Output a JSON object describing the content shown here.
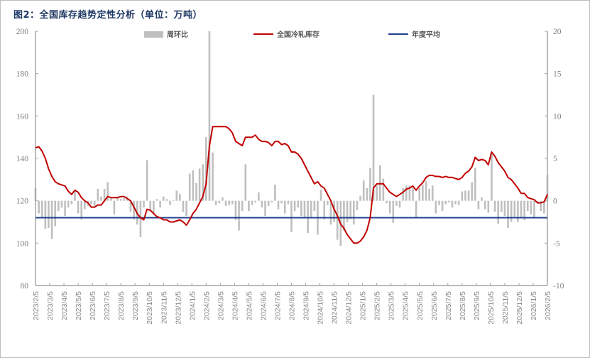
{
  "title": "图2：全国库存趋势定性分析（单位：万吨）",
  "chart_data": {
    "type": "bar+line",
    "title": "图2：全国库存趋势定性分析（单位：万吨）",
    "x_axis": {
      "type": "date",
      "frequency": "weekly",
      "range": [
        "2023/2/5",
        "2026/2/5"
      ],
      "tick_labels": [
        "2023/2/5",
        "2023/3/5",
        "2023/4/5",
        "2023/5/5",
        "2023/6/5",
        "2023/7/5",
        "2023/8/5",
        "2023/9/5",
        "2023/10/5",
        "2023/11/5",
        "2023/12/5",
        "2024/1/5",
        "2024/2/5",
        "2024/3/5",
        "2024/4/5",
        "2024/5/5",
        "2024/6/5",
        "2024/7/5",
        "2024/8/5",
        "2024/9/5",
        "2024/10/5",
        "2024/11/5",
        "2024/12/5",
        "2025/1/5",
        "2025/2/5",
        "2025/3/5",
        "2025/4/5",
        "2025/5/5",
        "2025/6/5",
        "2025/7/5",
        "2025/8/5",
        "2025/9/5",
        "2025/10/5",
        "2025/11/5",
        "2025/12/5",
        "2026/1/5",
        "2026/2/5"
      ]
    },
    "y_left": {
      "ylim": [
        80,
        200
      ],
      "ticks": [
        "200",
        "180",
        "160",
        "140",
        "120",
        "100",
        "80"
      ]
    },
    "y_right": {
      "ylim": [
        -10,
        20
      ],
      "ticks": [
        "20",
        "15",
        "10",
        "5",
        "0",
        "-5",
        "-10"
      ]
    },
    "legend_placement": "top",
    "grid": false,
    "colors": {
      "bars": "#bfbfbf",
      "line": "#c00000",
      "average": "#1f3f8f"
    },
    "series": [
      {
        "name": "周环比",
        "type": "bar",
        "axis": "right",
        "values": [
          1.5,
          -1.5,
          -2.0,
          -3.3,
          -3.2,
          -4.5,
          -3.0,
          -1.2,
          -0.8,
          -1.8,
          -0.8,
          -0.4,
          1.2,
          -1.5,
          -2.2,
          -1.0,
          -0.6,
          -0.4,
          -0.6,
          1.4,
          0.5,
          1.4,
          2.2,
          0.3,
          -1.6,
          0.5,
          0.2,
          0.3,
          0.5,
          -1.3,
          -2.2,
          -2.8,
          -4.3,
          -0.8,
          4.8,
          -1.2,
          -1.5,
          0.2,
          -0.8,
          0.5,
          0.2,
          -0.5,
          0.1,
          1.2,
          0.8,
          -1.3,
          -1.8,
          3.2,
          3.6,
          2.1,
          3.8,
          4.3,
          7.5,
          20,
          5.7,
          -0.5,
          -0.3,
          0.4,
          -0.6,
          -0.5,
          -0.4,
          -2.3,
          -3.5,
          -1.2,
          4.3,
          -1.2,
          -0.5,
          -0.2,
          1.0,
          -0.8,
          -1.8,
          -0.6,
          -0.2,
          1.9,
          -1.0,
          -0.3,
          -1.5,
          -0.4,
          -3.7,
          -1.2,
          -0.8,
          -1.8,
          -2.0,
          -3.8,
          -1.9,
          -1.2,
          -4.0,
          1.3,
          -2.2,
          -0.5,
          -2.8,
          -2.5,
          -4.6,
          -5.3,
          -3.5,
          -2.5,
          -2.2,
          -2.8,
          -1.1,
          0.6,
          2.4,
          1.5,
          3.9,
          12.5,
          1.8,
          4.2,
          2.6,
          -0.3,
          -1.5,
          -2.6,
          -0.6,
          -0.8,
          1.5,
          1.8,
          1.8,
          1.5,
          -2.0,
          1.5,
          1.9,
          2.3,
          1.4,
          1.8,
          -1.5,
          -0.5,
          -1.2,
          -0.4,
          -0.2,
          -0.8,
          -0.4,
          -0.5,
          1.1,
          1.2,
          1.2,
          2.2,
          3.9,
          -1.0,
          0.4,
          -1.0,
          -1.4,
          5.5,
          -1.3,
          -2.7,
          -1.3,
          -1.8,
          -3.2,
          -2.5,
          -1.9,
          -2.5,
          -2.0,
          -2.3,
          -1.2,
          -1.6,
          -2.0,
          -0.3,
          -1.2,
          -1.5,
          3.0
        ]
      },
      {
        "name": "全国冷轧库存",
        "type": "line",
        "axis": "left",
        "values": [
          145,
          145.5,
          143.5,
          140,
          135,
          131.5,
          129,
          128,
          127.5,
          127,
          124.5,
          123,
          125,
          124,
          121.5,
          120,
          119,
          117,
          117,
          118,
          118,
          120,
          122,
          121.5,
          121.5,
          121.5,
          122,
          122,
          121,
          120,
          117,
          114,
          112,
          111,
          116,
          115.5,
          114,
          112.5,
          112,
          111,
          111,
          110,
          110,
          110.5,
          111,
          110,
          108.5,
          111,
          114,
          116,
          119,
          122,
          128,
          146,
          155,
          155,
          155,
          155,
          155,
          154,
          152,
          148,
          147,
          146,
          150,
          150,
          150,
          151,
          149,
          148,
          148,
          147.5,
          146,
          148,
          148,
          146.5,
          147,
          146,
          143,
          143,
          142,
          140,
          137,
          134,
          131,
          128,
          129,
          127,
          126,
          123,
          120,
          116,
          113,
          109,
          107,
          104,
          102,
          100,
          100,
          101,
          103,
          106,
          112,
          126,
          128,
          128,
          128,
          126,
          124,
          123,
          122,
          123,
          124,
          125.5,
          126,
          127,
          125,
          127,
          128.5,
          131,
          132,
          132,
          131.5,
          131.5,
          131,
          131.5,
          131,
          131,
          130.5,
          130,
          131,
          133,
          134,
          136,
          140.5,
          139,
          139.5,
          139,
          137,
          143,
          141,
          138,
          136,
          134,
          131,
          130,
          128,
          126,
          123.5,
          123.5,
          121.5,
          121,
          120.5,
          119,
          119,
          119.5,
          123
        ]
      },
      {
        "name": "年度平均",
        "type": "line",
        "axis": "left",
        "value": 112
      }
    ]
  }
}
